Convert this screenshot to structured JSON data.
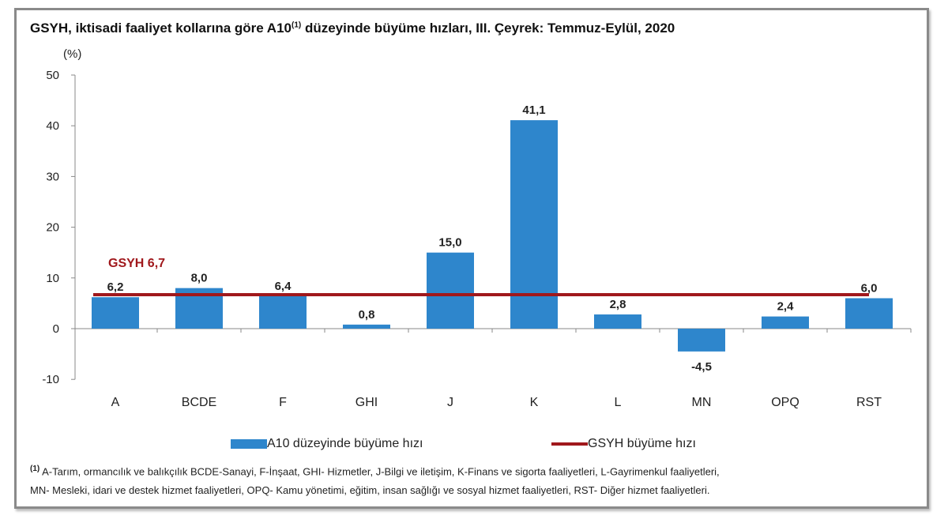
{
  "chart_data": {
    "type": "bar",
    "title": "GSYH, iktisadi faaliyet kollarına göre A10",
    "title_sup": "(1)",
    "title_rest": " düzeyinde büyüme hızları, III. Çeyrek: Temmuz-Eylül, 2020",
    "ylabel": "(%)",
    "ylim": [
      -10,
      50
    ],
    "yticks": [
      -10,
      0,
      10,
      20,
      30,
      40,
      50
    ],
    "categories": [
      "A",
      "BCDE",
      "F",
      "GHI",
      "J",
      "K",
      "L",
      "MN",
      "OPQ",
      "RST"
    ],
    "series": [
      {
        "name": "A10 düzeyinde büyüme hızı",
        "type": "bar",
        "color": "#2e86cc",
        "values": [
          6.2,
          8.0,
          6.4,
          0.8,
          15.0,
          41.1,
          2.8,
          -4.5,
          2.4,
          6.0
        ],
        "labels": [
          "6,2",
          "8,0",
          "6,4",
          "0,8",
          "15,0",
          "41,1",
          "2,8",
          "-4,5",
          "2,4",
          "6,0"
        ]
      },
      {
        "name": "GSYH büyüme hızı",
        "type": "line",
        "color": "#a0181c",
        "value": 6.7,
        "annotation": "GSYH  6,7"
      }
    ],
    "grid": false,
    "legend": "bottom"
  },
  "footnote": {
    "marker": "(1)",
    "line1": " A-Tarım, ormancılık ve balıkçılık BCDE-Sanayi, F-İnşaat, GHI- Hizmetler, J-Bilgi ve iletişim, K-Finans ve sigorta faaliyetleri, L-Gayrimenkul faaliyetleri,",
    "line2": "MN- Mesleki, idari ve destek hizmet faaliyetleri, OPQ- Kamu yönetimi, eğitim, insan sağlığı ve sosyal hizmet faaliyetleri, RST- Diğer hizmet faaliyetleri."
  }
}
